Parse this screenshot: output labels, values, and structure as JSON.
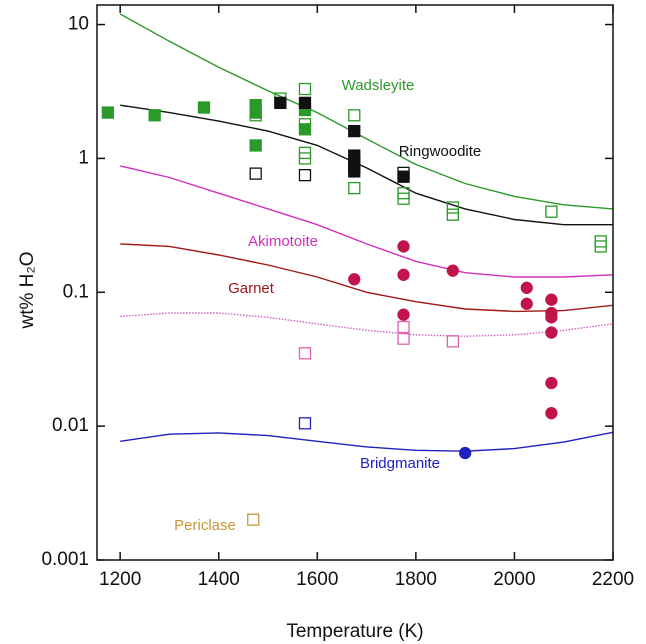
{
  "chart_data": {
    "type": "line",
    "xlabel": "Temperature (K)",
    "ylabel": "wt% H₂O",
    "xlim": [
      1153,
      2200
    ],
    "ylim": [
      0.001,
      14
    ],
    "log_y": true,
    "xticks": [
      1200,
      1400,
      1600,
      1800,
      2000,
      2200
    ],
    "yticks": [
      0.001,
      0.01,
      0.1,
      1,
      10
    ],
    "x": [
      1200,
      1300,
      1400,
      1500,
      1600,
      1700,
      1800,
      1900,
      2000,
      2100,
      2200
    ],
    "series": [
      {
        "name": "Wadsleyite",
        "color": "#2a9a2a",
        "values": [
          12,
          7.5,
          4.8,
          3.2,
          2.2,
          1.4,
          0.9,
          0.65,
          0.52,
          0.45,
          0.42
        ]
      },
      {
        "name": "Ringwoodite",
        "color": "#111111",
        "values": [
          2.5,
          2.2,
          1.9,
          1.6,
          1.25,
          0.85,
          0.55,
          0.42,
          0.35,
          0.32,
          0.32
        ]
      },
      {
        "name": "Akimotoite",
        "color": "#d030c0",
        "values": [
          0.88,
          0.72,
          0.55,
          0.42,
          0.32,
          0.23,
          0.17,
          0.14,
          0.13,
          0.13,
          0.135
        ]
      },
      {
        "name": "Garnet",
        "color": "#a01818",
        "values": [
          0.23,
          0.22,
          0.19,
          0.16,
          0.13,
          0.1,
          0.085,
          0.075,
          0.072,
          0.073,
          0.08
        ]
      },
      {
        "color": "#d060c0",
        "dashed": true,
        "values": [
          0.066,
          0.07,
          0.07,
          0.065,
          0.058,
          0.052,
          0.048,
          0.047,
          0.048,
          0.052,
          0.058
        ]
      },
      {
        "name": "Bridgmanite",
        "color": "#2020c0",
        "values": [
          0.0077,
          0.0087,
          0.0089,
          0.0085,
          0.0077,
          0.007,
          0.0066,
          0.0065,
          0.0068,
          0.0076,
          0.009
        ]
      }
    ],
    "points": [
      {
        "color": "#2a9a2a",
        "marker": "square",
        "filled": true,
        "x": [
          1175,
          1270,
          1370,
          1475,
          1475,
          1475,
          1575,
          1575
        ],
        "y": [
          2.2,
          2.1,
          2.4,
          2.5,
          2.2,
          1.25,
          1.65,
          2.3
        ]
      },
      {
        "color": "#2a9a2a",
        "marker": "square",
        "filled": false,
        "x": [
          1475,
          1525,
          1575,
          1575,
          1575,
          1575,
          1675,
          1675,
          1675,
          1775,
          1775,
          1875,
          1875,
          2075,
          2175,
          2175
        ],
        "y": [
          2.1,
          2.8,
          3.3,
          1.8,
          1.1,
          1.0,
          2.1,
          0.95,
          0.6,
          0.55,
          0.5,
          0.43,
          0.38,
          0.4,
          0.24,
          0.22
        ]
      },
      {
        "color": "#111111",
        "marker": "square",
        "filled": true,
        "x": [
          1525,
          1575,
          1675,
          1675,
          1675,
          1675,
          1775
        ],
        "y": [
          2.6,
          2.6,
          1.6,
          1.05,
          0.9,
          0.8,
          0.73
        ]
      },
      {
        "color": "#111111",
        "marker": "square",
        "filled": false,
        "x": [
          1475,
          1575,
          1675,
          1775
        ],
        "y": [
          0.77,
          0.75,
          0.85,
          0.78
        ]
      },
      {
        "color": "#c0144a",
        "marker": "circle",
        "filled": true,
        "x": [
          1675,
          1775,
          1775,
          1775,
          1875,
          2025,
          2025,
          2075,
          2075,
          2075,
          2075,
          2075,
          2075
        ],
        "y": [
          0.125,
          0.22,
          0.135,
          0.068,
          0.145,
          0.108,
          0.082,
          0.088,
          0.07,
          0.065,
          0.05,
          0.021,
          0.0125
        ]
      },
      {
        "color": "#e060b0",
        "marker": "square",
        "filled": false,
        "x": [
          1575,
          1775,
          1775,
          1875
        ],
        "y": [
          0.035,
          0.055,
          0.045,
          0.043
        ]
      },
      {
        "color": "#2020c0",
        "marker": "square",
        "filled": false,
        "x": [
          1575
        ],
        "y": [
          0.0105
        ]
      },
      {
        "color": "#2020c0",
        "marker": "circle",
        "filled": true,
        "x": [
          1900
        ],
        "y": [
          0.0063
        ]
      },
      {
        "color": "#c8963c",
        "marker": "square",
        "filled": false,
        "x": [
          1470
        ],
        "y": [
          0.002
        ]
      }
    ],
    "annotations": [
      {
        "text": "Periclase",
        "color": "#c8963c"
      }
    ]
  }
}
